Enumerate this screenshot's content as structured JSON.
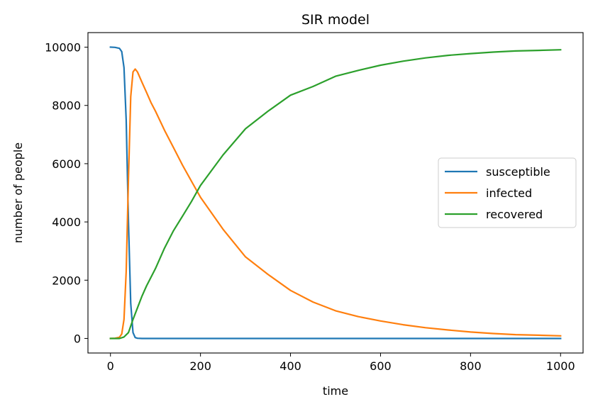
{
  "chart_data": {
    "type": "line",
    "title": "SIR model",
    "xlabel": "time",
    "ylabel": "number of people",
    "xlim": [
      -50,
      1050
    ],
    "ylim": [
      -500,
      10500
    ],
    "xticks": [
      0,
      200,
      400,
      600,
      800,
      1000
    ],
    "yticks": [
      0,
      2000,
      4000,
      6000,
      8000,
      10000
    ],
    "grid": false,
    "legend": "center-right",
    "series": [
      {
        "name": "susceptible",
        "color": "#1f77b4",
        "x": [
          0,
          10,
          20,
          25,
          30,
          35,
          40,
          45,
          50,
          55,
          60,
          70,
          100,
          200,
          400,
          600,
          800,
          1000
        ],
        "y": [
          10000,
          9995,
          9960,
          9850,
          9300,
          7500,
          4000,
          1200,
          200,
          30,
          5,
          0,
          0,
          0,
          0,
          0,
          0,
          0
        ]
      },
      {
        "name": "infected",
        "color": "#ff7f0e",
        "x": [
          0,
          10,
          20,
          25,
          30,
          35,
          40,
          45,
          50,
          55,
          60,
          70,
          80,
          90,
          100,
          120,
          140,
          160,
          180,
          200,
          250,
          300,
          350,
          400,
          450,
          500,
          550,
          600,
          650,
          700,
          750,
          800,
          850,
          900,
          950,
          1000
        ],
        "y": [
          0,
          5,
          40,
          150,
          650,
          2300,
          5500,
          8300,
          9150,
          9250,
          9150,
          8800,
          8450,
          8100,
          7800,
          7150,
          6550,
          5950,
          5400,
          4850,
          3750,
          2800,
          2200,
          1650,
          1250,
          950,
          750,
          600,
          470,
          370,
          290,
          220,
          170,
          130,
          110,
          90
        ]
      },
      {
        "name": "recovered",
        "color": "#2ca02c",
        "x": [
          0,
          20,
          30,
          40,
          50,
          60,
          70,
          80,
          90,
          100,
          120,
          140,
          160,
          180,
          200,
          250,
          300,
          350,
          400,
          450,
          500,
          550,
          600,
          650,
          700,
          750,
          800,
          850,
          900,
          950,
          1000
        ],
        "y": [
          0,
          0,
          50,
          200,
          650,
          1050,
          1450,
          1800,
          2100,
          2400,
          3100,
          3700,
          4200,
          4700,
          5250,
          6300,
          7200,
          7800,
          8350,
          8650,
          9000,
          9200,
          9380,
          9520,
          9630,
          9720,
          9780,
          9830,
          9870,
          9890,
          9910
        ]
      }
    ]
  }
}
